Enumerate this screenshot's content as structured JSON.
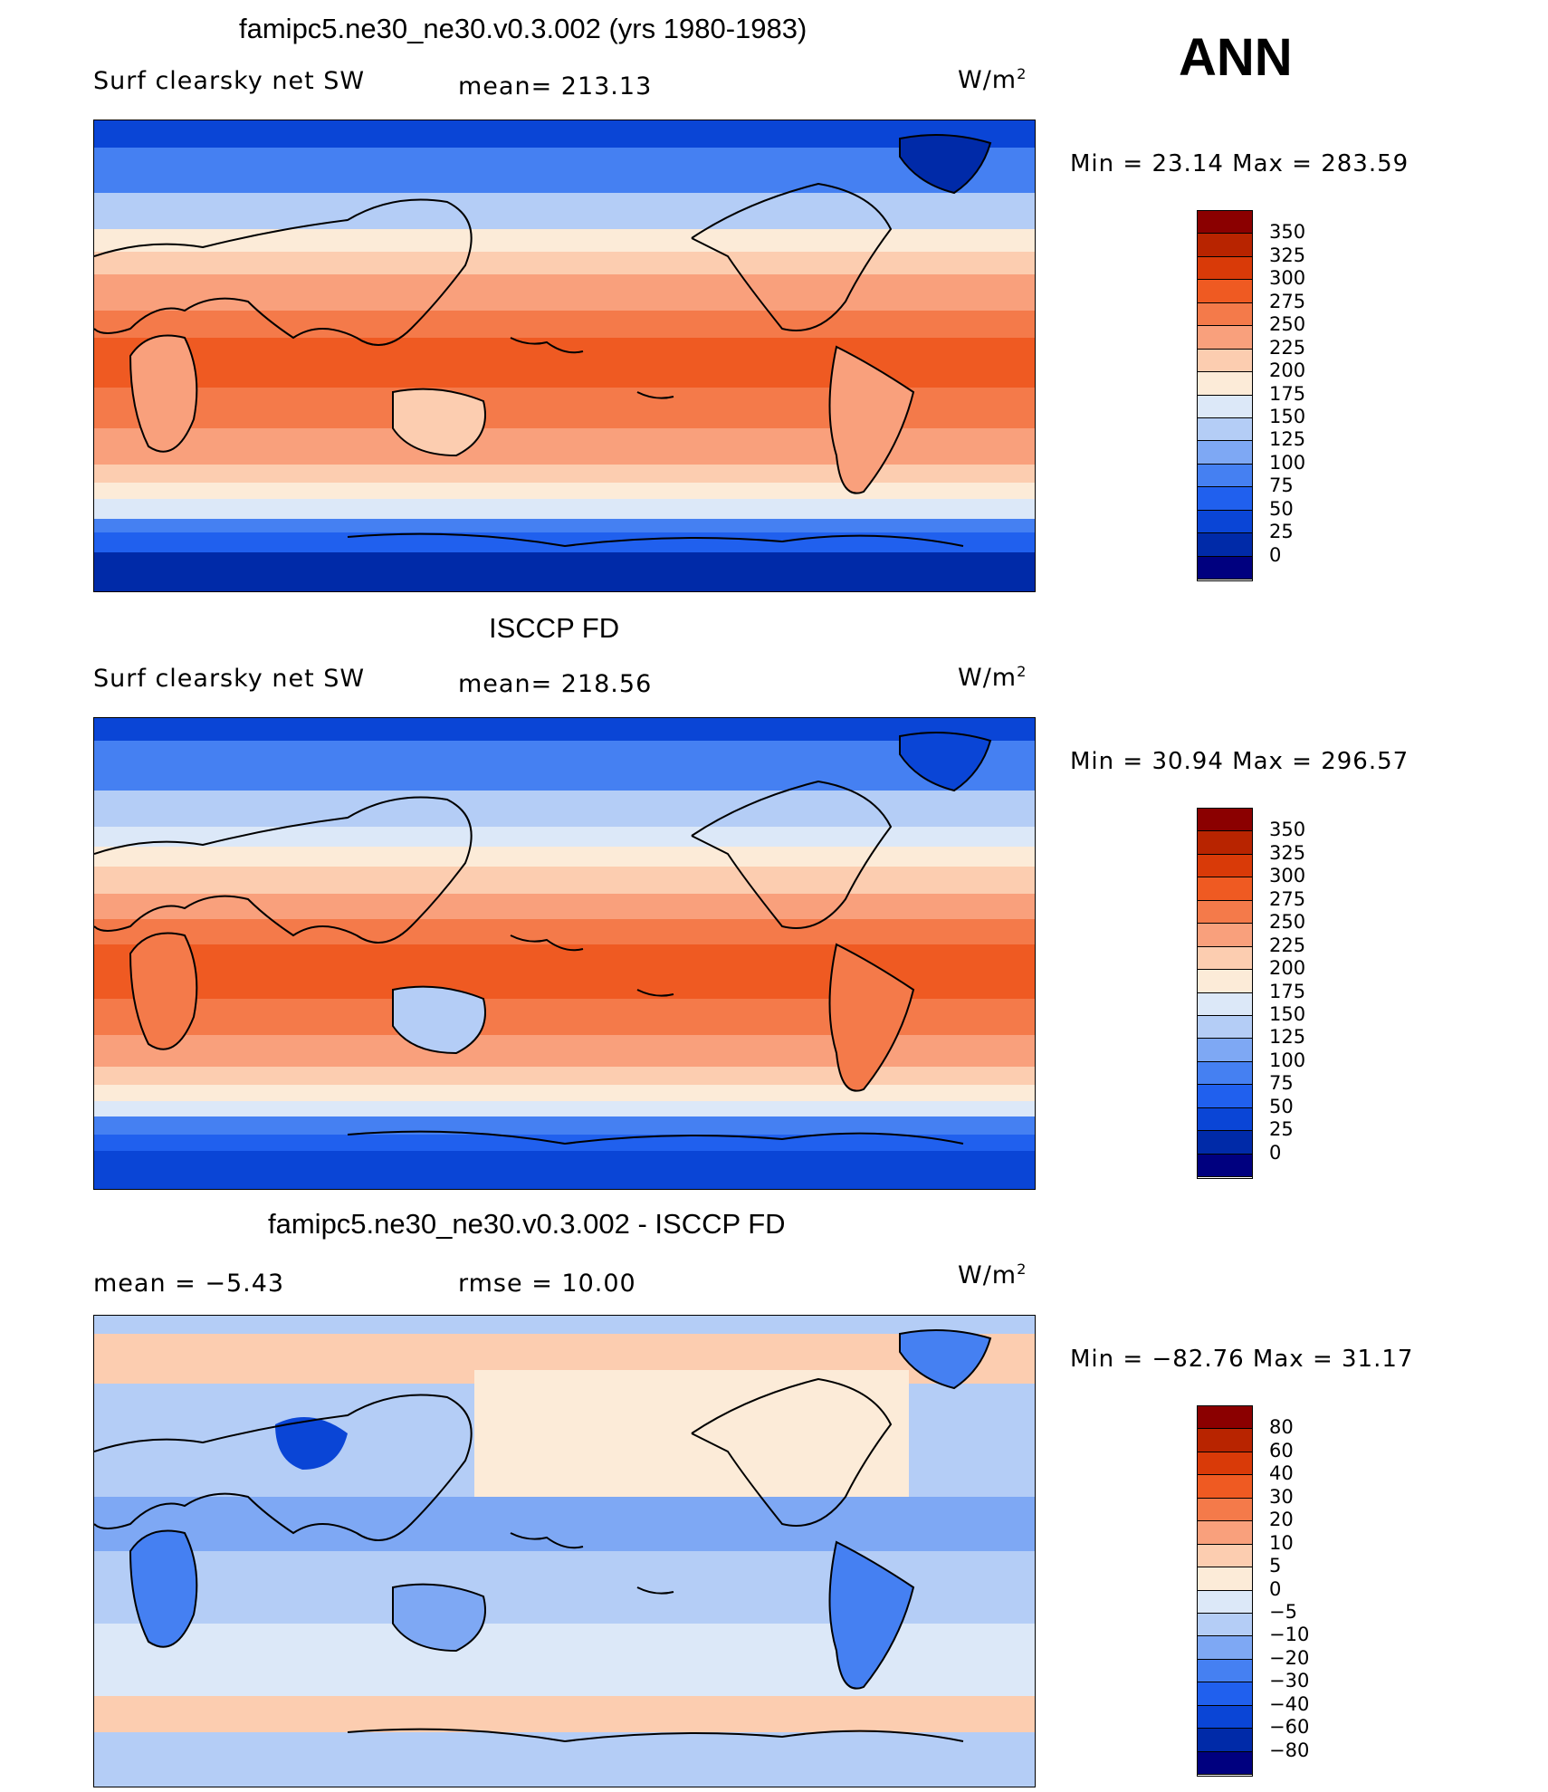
{
  "header": {
    "ann_label": "ANN"
  },
  "colors": {
    "abs_scale": [
      "#00007f",
      "#002aa8",
      "#0a45d6",
      "#2060ee",
      "#4580f2",
      "#7ea8f4",
      "#b4cdf6",
      "#dce8f8",
      "#fcebd8",
      "#fccdb0",
      "#f9a07c",
      "#f47a4a",
      "#ef5a22",
      "#d93a08",
      "#b82400",
      "#8b0000"
    ],
    "diff_scale": [
      "#00007f",
      "#002aa8",
      "#0a45d6",
      "#2060ee",
      "#4580f2",
      "#7ea8f4",
      "#b4cdf6",
      "#dce8f8",
      "#fcebd8",
      "#fccdb0",
      "#f9a07c",
      "#f47a4a",
      "#ef5a22",
      "#d93a08",
      "#b82400",
      "#8b0000"
    ]
  },
  "panels": [
    {
      "title": "famipc5.ne30_ne30.v0.3.002 (yrs 1980-1983)",
      "left_label": "Surf clearsky net SW",
      "center_label": "mean= 213.13",
      "units": "W/m",
      "units_sup": "2",
      "min_max": "Min =   23.14 Max = 283.59",
      "colorbar_labels": [
        "350",
        "325",
        "300",
        "275",
        "250",
        "225",
        "200",
        "175",
        "150",
        "125",
        "100",
        "75",
        "50",
        "25",
        "0"
      ]
    },
    {
      "title": "ISCCP FD",
      "left_label": "Surf clearsky net SW",
      "center_label": "mean= 218.56",
      "units": "W/m",
      "units_sup": "2",
      "min_max": "Min =   30.94 Max = 296.57",
      "colorbar_labels": [
        "350",
        "325",
        "300",
        "275",
        "250",
        "225",
        "200",
        "175",
        "150",
        "125",
        "100",
        "75",
        "50",
        "25",
        "0"
      ]
    },
    {
      "title": "famipc5.ne30_ne30.v0.3.002 - ISCCP FD",
      "left_label": "mean =   −5.43",
      "center_label": "rmse =   10.00",
      "units": "W/m",
      "units_sup": "2",
      "min_max": "Min = −82.76 Max =   31.17",
      "colorbar_labels": [
        "80",
        "60",
        "40",
        "30",
        "20",
        "10",
        "5",
        "0",
        "−5",
        "−10",
        "−20",
        "−30",
        "−40",
        "−60",
        "−80"
      ]
    }
  ]
}
